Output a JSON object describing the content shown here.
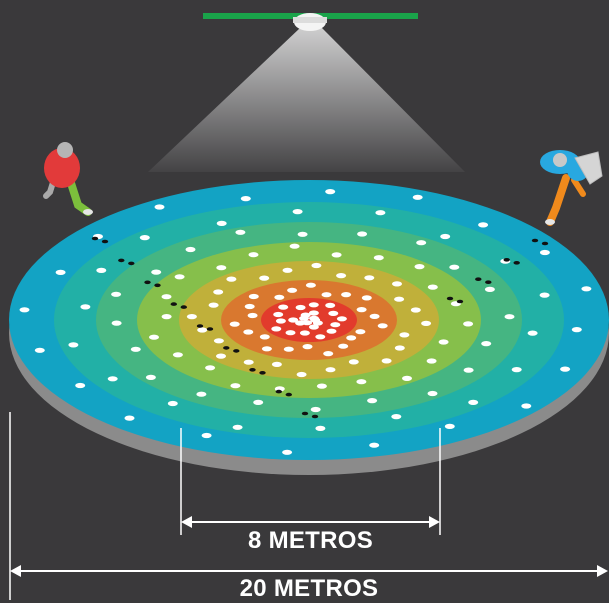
{
  "labels": {
    "inner_distance": "8 METROS",
    "outer_distance": "20 METROS"
  },
  "colors": {
    "background": "#3a393b",
    "ceiling_bar": "#1aa34a",
    "base": "#8b8b8b",
    "rings": [
      "#13a3c4",
      "#22b0a6",
      "#45b582",
      "#86bf4b",
      "#c0b03a",
      "#d9782f",
      "#e23b2c"
    ],
    "person_left": "#e23a3a",
    "person_right": "#28a8e0"
  },
  "icons": [
    "ceiling-light-icon",
    "person-icon",
    "footprint-icon"
  ]
}
